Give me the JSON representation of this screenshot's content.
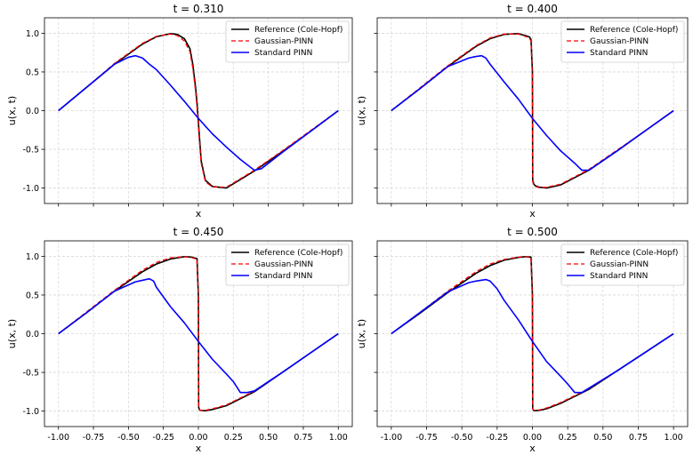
{
  "chart_data": [
    {
      "type": "line",
      "title": "t = 0.310",
      "xlabel": "x",
      "ylabel": "u(x, t)",
      "xlim": [
        -1.1,
        1.1
      ],
      "ylim": [
        -1.2,
        1.2
      ],
      "xticks": [
        "-1.00",
        "-0.75",
        "-0.50",
        "-0.25",
        "0.00",
        "0.25",
        "0.50",
        "0.75",
        "1.00"
      ],
      "yticks": [
        "-1.0",
        "-0.5",
        "0.0",
        "0.5",
        "1.0"
      ],
      "show_xtick_labels": false,
      "show_ytick_labels": true,
      "show_ylabel": true,
      "grid": true,
      "legend_position": "top-right",
      "series": [
        {
          "name": "Reference (Cole-Hopf)",
          "color": "#000000",
          "style": "solid",
          "x": [
            -1.0,
            -0.8,
            -0.6,
            -0.4,
            -0.3,
            -0.2,
            -0.15,
            -0.1,
            -0.06,
            -0.04,
            -0.02,
            -0.01,
            0.0,
            0.01,
            0.02,
            0.05,
            0.1,
            0.2,
            0.4,
            0.6,
            0.8,
            1.0
          ],
          "y": [
            0.0,
            0.3,
            0.6,
            0.86,
            0.955,
            0.995,
            0.985,
            0.93,
            0.8,
            0.6,
            0.3,
            0.1,
            -0.15,
            -0.4,
            -0.65,
            -0.9,
            -0.98,
            -1.0,
            -0.78,
            -0.53,
            -0.27,
            0.0
          ]
        },
        {
          "name": "Gaussian-PINN",
          "color": "#ff0000",
          "style": "dashed",
          "x": [
            -1.0,
            -0.8,
            -0.6,
            -0.4,
            -0.3,
            -0.2,
            -0.15,
            -0.1,
            -0.06,
            -0.04,
            -0.02,
            -0.01,
            0.0,
            0.01,
            0.02,
            0.05,
            0.1,
            0.2,
            0.4,
            0.6,
            0.8,
            1.0
          ],
          "y": [
            0.0,
            0.3,
            0.61,
            0.87,
            0.96,
            0.99,
            0.97,
            0.9,
            0.76,
            0.55,
            0.25,
            0.05,
            -0.2,
            -0.45,
            -0.68,
            -0.92,
            -0.985,
            -0.99,
            -0.77,
            -0.52,
            -0.26,
            0.0
          ]
        },
        {
          "name": "Standard PINN",
          "color": "#0000ff",
          "style": "solid",
          "x": [
            -1.0,
            -0.8,
            -0.6,
            -0.5,
            -0.45,
            -0.4,
            -0.35,
            -0.3,
            -0.2,
            -0.1,
            0.0,
            0.1,
            0.2,
            0.3,
            0.35,
            0.4,
            0.45,
            0.6,
            0.8,
            1.0
          ],
          "y": [
            0.0,
            0.3,
            0.6,
            0.69,
            0.71,
            0.68,
            0.6,
            0.53,
            0.33,
            0.12,
            -0.1,
            -0.3,
            -0.47,
            -0.63,
            -0.7,
            -0.77,
            -0.75,
            -0.54,
            -0.27,
            0.0
          ]
        }
      ]
    },
    {
      "type": "line",
      "title": "t = 0.400",
      "xlabel": "x",
      "ylabel": "u(x, t)",
      "xlim": [
        -1.1,
        1.1
      ],
      "ylim": [
        -1.2,
        1.2
      ],
      "xticks": [
        "-1.00",
        "-0.75",
        "-0.50",
        "-0.25",
        "0.00",
        "0.25",
        "0.50",
        "0.75",
        "1.00"
      ],
      "yticks": [
        "-1.0",
        "-0.5",
        "0.0",
        "0.5",
        "1.0"
      ],
      "show_xtick_labels": false,
      "show_ytick_labels": false,
      "show_ylabel": true,
      "grid": true,
      "legend_position": "top-right",
      "series": [
        {
          "name": "Reference (Cole-Hopf)",
          "color": "#000000",
          "style": "solid",
          "x": [
            -1.0,
            -0.8,
            -0.6,
            -0.4,
            -0.3,
            -0.2,
            -0.1,
            -0.05,
            -0.02,
            -0.01,
            0.0,
            0.002,
            0.01,
            0.02,
            0.05,
            0.1,
            0.2,
            0.4,
            0.6,
            0.8,
            1.0
          ],
          "y": [
            0.0,
            0.28,
            0.57,
            0.83,
            0.93,
            0.985,
            0.995,
            0.97,
            0.95,
            0.92,
            0.5,
            -0.9,
            -0.95,
            -0.97,
            -0.99,
            -1.0,
            -0.96,
            -0.77,
            -0.52,
            -0.26,
            0.0
          ]
        },
        {
          "name": "Gaussian-PINN",
          "color": "#ff0000",
          "style": "dashed",
          "x": [
            -1.0,
            -0.8,
            -0.6,
            -0.4,
            -0.3,
            -0.2,
            -0.1,
            -0.05,
            -0.02,
            -0.01,
            0.0,
            0.002,
            0.01,
            0.02,
            0.05,
            0.1,
            0.2,
            0.4,
            0.6,
            0.8,
            1.0
          ],
          "y": [
            0.0,
            0.29,
            0.58,
            0.84,
            0.94,
            0.99,
            0.99,
            0.96,
            0.93,
            0.9,
            0.4,
            -0.92,
            -0.96,
            -0.98,
            -0.995,
            -0.99,
            -0.95,
            -0.76,
            -0.51,
            -0.26,
            0.0
          ]
        },
        {
          "name": "Standard PINN",
          "color": "#0000ff",
          "style": "solid",
          "x": [
            -1.0,
            -0.8,
            -0.6,
            -0.45,
            -0.4,
            -0.36,
            -0.33,
            -0.3,
            -0.2,
            -0.1,
            0.0,
            0.1,
            0.2,
            0.3,
            0.35,
            0.4,
            0.6,
            0.8,
            1.0
          ],
          "y": [
            0.0,
            0.28,
            0.57,
            0.68,
            0.7,
            0.71,
            0.68,
            0.6,
            0.37,
            0.15,
            -0.1,
            -0.32,
            -0.52,
            -0.68,
            -0.77,
            -0.77,
            -0.52,
            -0.26,
            0.0
          ]
        }
      ]
    },
    {
      "type": "line",
      "title": "t = 0.450",
      "xlabel": "x",
      "ylabel": "u(x, t)",
      "xlim": [
        -1.1,
        1.1
      ],
      "ylim": [
        -1.2,
        1.2
      ],
      "xticks": [
        "-1.00",
        "-0.75",
        "-0.50",
        "-0.25",
        "0.00",
        "0.25",
        "0.50",
        "0.75",
        "1.00"
      ],
      "yticks": [
        "-1.0",
        "-0.5",
        "0.0",
        "0.5",
        "1.0"
      ],
      "show_xtick_labels": true,
      "show_ytick_labels": true,
      "show_ylabel": true,
      "grid": true,
      "legend_position": "top-right",
      "series": [
        {
          "name": "Reference (Cole-Hopf)",
          "color": "#000000",
          "style": "solid",
          "x": [
            -1.0,
            -0.8,
            -0.6,
            -0.4,
            -0.3,
            -0.2,
            -0.1,
            -0.05,
            -0.01,
            0.0,
            0.002,
            0.01,
            0.05,
            0.1,
            0.2,
            0.4,
            0.6,
            0.8,
            1.0
          ],
          "y": [
            0.0,
            0.27,
            0.55,
            0.8,
            0.9,
            0.965,
            0.995,
            0.99,
            0.97,
            0.5,
            -0.95,
            -0.99,
            -0.995,
            -0.98,
            -0.93,
            -0.75,
            -0.5,
            -0.25,
            0.0
          ]
        },
        {
          "name": "Gaussian-PINN",
          "color": "#ff0000",
          "style": "dashed",
          "x": [
            -1.0,
            -0.8,
            -0.6,
            -0.4,
            -0.3,
            -0.2,
            -0.1,
            -0.05,
            -0.01,
            0.0,
            0.002,
            0.01,
            0.05,
            0.1,
            0.2,
            0.4,
            0.6,
            0.8,
            1.0
          ],
          "y": [
            0.0,
            0.28,
            0.56,
            0.82,
            0.92,
            0.98,
            0.995,
            0.985,
            0.96,
            0.4,
            -0.96,
            -0.99,
            -0.99,
            -0.97,
            -0.92,
            -0.74,
            -0.5,
            -0.25,
            0.0
          ]
        },
        {
          "name": "Standard PINN",
          "color": "#0000ff",
          "style": "solid",
          "x": [
            -1.0,
            -0.8,
            -0.6,
            -0.45,
            -0.4,
            -0.35,
            -0.32,
            -0.3,
            -0.2,
            -0.1,
            0.0,
            0.1,
            0.2,
            0.25,
            0.3,
            0.35,
            0.4,
            0.6,
            0.8,
            1.0
          ],
          "y": [
            0.0,
            0.27,
            0.55,
            0.67,
            0.69,
            0.71,
            0.68,
            0.6,
            0.35,
            0.14,
            -0.1,
            -0.33,
            -0.52,
            -0.62,
            -0.76,
            -0.76,
            -0.74,
            -0.5,
            -0.25,
            0.0
          ]
        }
      ]
    },
    {
      "type": "line",
      "title": "t = 0.500",
      "xlabel": "x",
      "ylabel": "u(x, t)",
      "xlim": [
        -1.1,
        1.1
      ],
      "ylim": [
        -1.2,
        1.2
      ],
      "xticks": [
        "-1.00",
        "-0.75",
        "-0.50",
        "-0.25",
        "0.00",
        "0.25",
        "0.50",
        "0.75",
        "1.00"
      ],
      "yticks": [
        "-1.0",
        "-0.5",
        "0.0",
        "0.5",
        "1.0"
      ],
      "show_xtick_labels": true,
      "show_ytick_labels": false,
      "show_ylabel": true,
      "grid": true,
      "legend_position": "top-right",
      "series": [
        {
          "name": "Reference (Cole-Hopf)",
          "color": "#000000",
          "style": "solid",
          "x": [
            -1.0,
            -0.8,
            -0.6,
            -0.4,
            -0.3,
            -0.2,
            -0.1,
            -0.05,
            -0.01,
            0.0,
            0.002,
            0.01,
            0.05,
            0.1,
            0.2,
            0.4,
            0.6,
            0.8,
            1.0
          ],
          "y": [
            0.0,
            0.26,
            0.53,
            0.78,
            0.88,
            0.95,
            0.985,
            0.995,
            0.99,
            0.5,
            -0.97,
            -0.995,
            -0.99,
            -0.97,
            -0.9,
            -0.72,
            -0.48,
            -0.24,
            0.0
          ]
        },
        {
          "name": "Gaussian-PINN",
          "color": "#ff0000",
          "style": "dashed",
          "x": [
            -1.0,
            -0.8,
            -0.6,
            -0.4,
            -0.3,
            -0.2,
            -0.1,
            -0.05,
            -0.01,
            0.0,
            0.002,
            0.01,
            0.05,
            0.1,
            0.2,
            0.4,
            0.6,
            0.8,
            1.0
          ],
          "y": [
            0.0,
            0.27,
            0.55,
            0.8,
            0.9,
            0.96,
            0.99,
            0.995,
            0.985,
            0.4,
            -0.97,
            -0.99,
            -0.985,
            -0.96,
            -0.89,
            -0.71,
            -0.48,
            -0.24,
            0.0
          ]
        },
        {
          "name": "Standard PINN",
          "color": "#0000ff",
          "style": "solid",
          "x": [
            -1.0,
            -0.8,
            -0.6,
            -0.45,
            -0.4,
            -0.33,
            -0.3,
            -0.25,
            -0.2,
            -0.1,
            0.0,
            0.1,
            0.2,
            0.25,
            0.3,
            0.35,
            0.6,
            0.8,
            1.0
          ],
          "y": [
            0.0,
            0.27,
            0.54,
            0.66,
            0.68,
            0.7,
            0.68,
            0.58,
            0.43,
            0.18,
            -0.1,
            -0.36,
            -0.55,
            -0.65,
            -0.76,
            -0.76,
            -0.48,
            -0.24,
            0.0
          ]
        }
      ]
    }
  ]
}
